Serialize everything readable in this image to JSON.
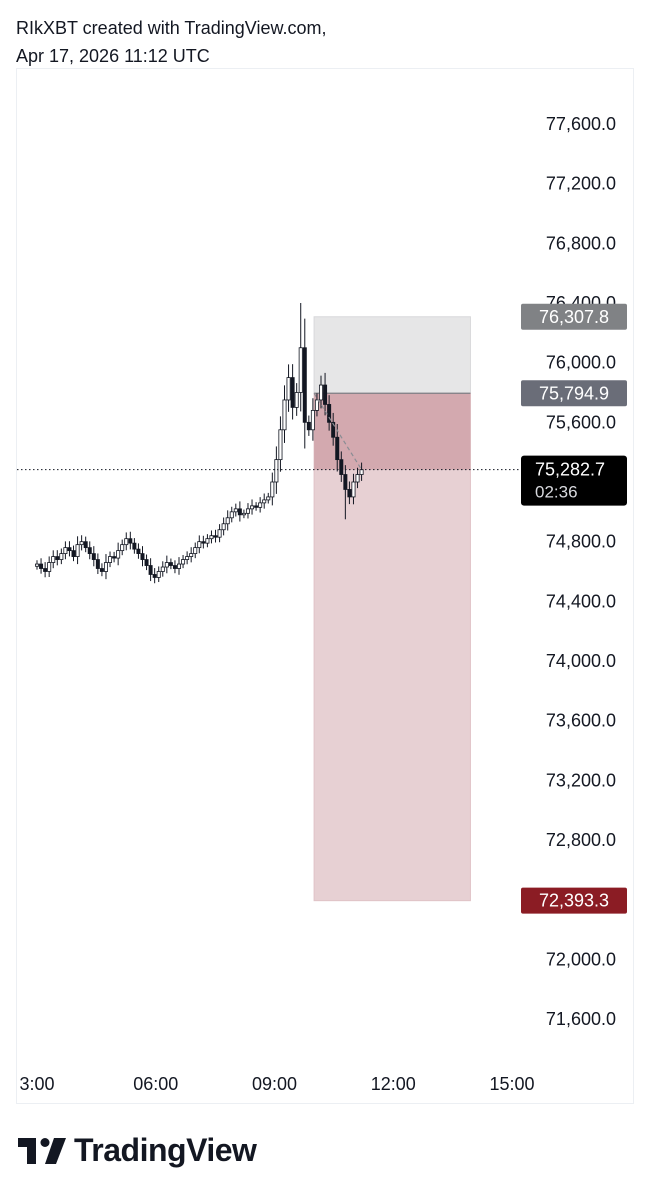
{
  "header": {
    "line1": "RIkXBT created with TradingView.com,",
    "line2": "Apr 17, 2026 11:12 UTC"
  },
  "chart_data": {
    "type": "candlestick",
    "yticks": [
      "77,600.0",
      "77,200.0",
      "76,800.0",
      "76,400.0",
      "76,000.0",
      "75,600.0",
      "74,800.0",
      "74,400.0",
      "74,000.0",
      "73,600.0",
      "73,200.0",
      "72,800.0",
      "72,000.0",
      "71,600.0"
    ],
    "ytick_values": [
      77600,
      77200,
      76800,
      76400,
      76000,
      75600,
      74800,
      74400,
      74000,
      73600,
      73200,
      72800,
      72000,
      71600
    ],
    "xticks": [
      "3:00",
      "06:00",
      "09:00",
      "12:00",
      "15:00"
    ],
    "xtick_hours": [
      3,
      6,
      9,
      12,
      15
    ],
    "ylim": [
      71400,
      78000
    ],
    "xlim_hours": [
      2.95,
      18.4
    ],
    "price_labels": [
      {
        "text": "76,307.8",
        "value": 76307.8,
        "role": "target",
        "color": "#808285"
      },
      {
        "text": "75,794.9",
        "value": 75794.9,
        "role": "entry",
        "color": "#6a6d78"
      },
      {
        "text": "72,393.3",
        "value": 72393.3,
        "role": "stop",
        "color": "#8b1c24"
      }
    ],
    "last_price": {
      "text": "75,282.7",
      "countdown": "02:36",
      "value": 75282.7,
      "color": "#000000"
    },
    "position": {
      "start_hour": 10.0,
      "end_hour": 13.95,
      "entry": 75794.9,
      "target": 76307.8,
      "stop": 72393.3
    },
    "close_series": [
      74650,
      74620,
      74600,
      74660,
      74700,
      74680,
      74720,
      74760,
      74740,
      74700,
      74780,
      74800,
      74760,
      74720,
      74680,
      74620,
      74600,
      74660,
      74700,
      74690,
      74740,
      74780,
      74820,
      74790,
      74750,
      74720,
      74680,
      74640,
      74580,
      74560,
      74600,
      74630,
      74660,
      74640,
      74620,
      74650,
      74680,
      74700,
      74720,
      74760,
      74800,
      74790,
      74820,
      74840,
      74830,
      74880,
      74920,
      74960,
      75000,
      75020,
      74980,
      74990,
      75020,
      75040,
      75030,
      75060,
      75080,
      75100,
      75200,
      75350,
      75550,
      75750,
      75900,
      75700,
      75800,
      76100,
      75600,
      75550,
      75680,
      75750,
      75850,
      75720,
      75600,
      75500,
      75350,
      75250,
      75150,
      75100,
      75200,
      75250,
      75282.7
    ]
  },
  "logo": {
    "text": "TradingView"
  }
}
